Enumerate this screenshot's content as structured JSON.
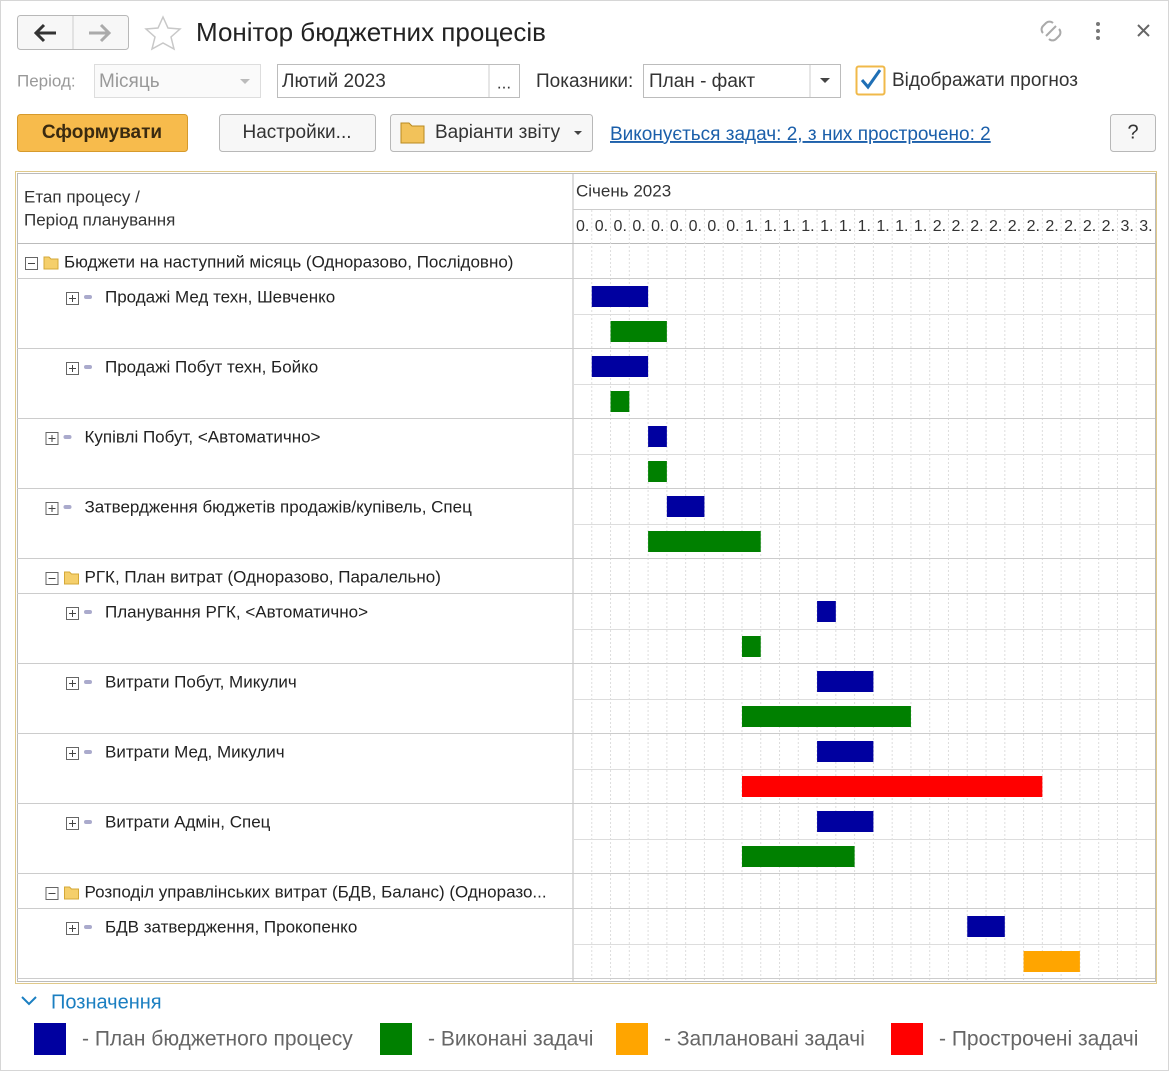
{
  "header": {
    "title": "Монітор бюджетних процесів"
  },
  "toolbar": {
    "period_label": "Період:",
    "period_value": "Місяць",
    "month": "Лютий 2023",
    "month_button": "...",
    "indicators_label": "Показники:",
    "indicators_value": "План - факт",
    "forecast_label": "Відображати прогноз",
    "generate": "Сформувати",
    "settings": "Настройки...",
    "variants": "Варіанти звіту",
    "tasks_link": "Виконується задач: 2, з них прострочено: 2",
    "help": "?"
  },
  "table": {
    "header_line1": "Етап процесу /",
    "header_line2": "Період планування",
    "month": "Січень 2023",
    "days": [
      "0.",
      "0.",
      "0.",
      "0.",
      "0.",
      "0.",
      "0.",
      "0.",
      "0.",
      "1.",
      "1.",
      "1.",
      "1.",
      "1.",
      "1.",
      "1.",
      "1.",
      "1.",
      "1.",
      "2.",
      "2.",
      "2.",
      "2.",
      "2.",
      "2.",
      "2.",
      "2.",
      "2.",
      "2.",
      "3.",
      "3."
    ],
    "rows": [
      {
        "label": "Бюджети на наступний місяць (Одноразово, Послідовно)",
        "level": 0
      },
      {
        "label": "Продажі Мед техн, Шевченко",
        "level": 2,
        "plan": [
          2,
          4
        ],
        "fact": [
          3,
          5
        ],
        "fact_color": "#008000"
      },
      {
        "label": "Продажі Побут техн, Бойко",
        "level": 2,
        "plan": [
          2,
          4
        ],
        "fact": [
          3,
          3
        ],
        "fact_color": "#008000"
      },
      {
        "label": "Купівлі Побут, <Автоматично>",
        "level": 1,
        "plan": [
          5,
          5
        ],
        "fact": [
          5,
          5
        ],
        "fact_color": "#008000"
      },
      {
        "label": "Затвердження бюджетів продажів/купівель, Спец",
        "level": 1,
        "plan": [
          6,
          7
        ],
        "fact": [
          5,
          10
        ],
        "fact_color": "#008000"
      },
      {
        "label": "РГК, План витрат (Одноразово, Паралельно)",
        "level": 1
      },
      {
        "label": "Планування РГК, <Автоматично>",
        "level": 2,
        "plan": [
          14,
          14
        ],
        "fact": [
          10,
          10
        ],
        "fact_color": "#008000"
      },
      {
        "label": "Витрати Побут, Микулич",
        "level": 2,
        "plan": [
          14,
          16
        ],
        "fact": [
          10,
          18
        ],
        "fact_color": "#008000"
      },
      {
        "label": "Витрати Мед, Микулич",
        "level": 2,
        "plan": [
          14,
          16
        ],
        "fact": [
          10,
          25
        ],
        "fact_color": "#ff0000"
      },
      {
        "label": "Витрати Адмін, Спец",
        "level": 2,
        "plan": [
          14,
          16
        ],
        "fact": [
          10,
          15
        ],
        "fact_color": "#008000"
      },
      {
        "label": "Розподіл управлінських витрат (БДВ, Баланс) (Одноразо...",
        "level": 1
      },
      {
        "label": "БДВ затвердження, Прокопенко",
        "level": 2,
        "plan": [
          22,
          23
        ],
        "fact": [
          25,
          27
        ],
        "fact_color": "#ffa500"
      }
    ]
  },
  "legend": {
    "title": "Позначення",
    "items": [
      {
        "label": "- План бюджетного процесу",
        "color": "#0000a0"
      },
      {
        "label": "- Виконані задачі",
        "color": "#008000"
      },
      {
        "label": "- Заплановані задачі",
        "color": "#ffa500"
      },
      {
        "label": "- Прострочені задачі",
        "color": "#ff0000"
      }
    ]
  }
}
